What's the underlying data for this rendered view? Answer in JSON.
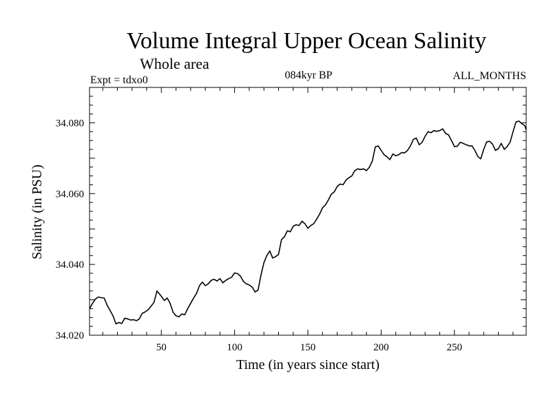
{
  "chart_data": {
    "type": "line",
    "title": "Volume Integral Upper Ocean Salinity",
    "subtitle": "Whole area",
    "header_left": "Expt = tdxo0",
    "header_center": "084kyr BP",
    "header_right": "ALL_MONTHS",
    "xlabel": "Time (in years since start)",
    "ylabel": "Salinity (in PSU)",
    "xlim": [
      1,
      299
    ],
    "ylim": [
      34.02,
      34.09
    ],
    "x_ticks": [
      50,
      100,
      150,
      200,
      250
    ],
    "x_tick_labels": [
      "50",
      "100",
      "150",
      "200",
      "250"
    ],
    "y_ticks": [
      34.02,
      34.04,
      34.06,
      34.08
    ],
    "y_tick_labels": [
      "34.020",
      "34.040",
      "34.060",
      "34.080"
    ],
    "grid": false,
    "colors": {
      "line": "#000000",
      "axes": "#000000",
      "background": "#ffffff"
    },
    "series": [
      {
        "x": [
          1,
          3,
          5,
          7,
          9,
          11,
          13,
          15,
          17,
          19,
          21,
          23,
          25,
          27,
          29,
          31,
          33,
          35,
          37,
          39,
          41,
          43,
          45,
          47,
          48,
          50,
          52,
          54,
          56,
          58,
          60,
          62,
          64,
          66,
          68,
          70,
          72,
          74,
          76,
          78,
          80,
          82,
          84,
          86,
          88,
          90,
          92,
          94,
          96,
          98,
          100,
          102,
          104,
          106,
          108,
          110,
          112,
          114,
          116,
          118,
          120,
          122,
          124,
          126,
          128,
          130,
          132,
          134,
          136,
          138,
          140,
          142,
          144,
          146,
          148,
          150,
          152,
          154,
          156,
          158,
          160,
          162,
          164,
          166,
          168,
          170,
          172,
          174,
          176,
          178,
          180,
          182,
          184,
          186,
          188,
          190,
          192,
          194,
          196,
          198,
          200,
          202,
          204,
          206,
          208,
          210,
          212,
          214,
          216,
          218,
          220,
          222,
          224,
          226,
          228,
          230,
          232,
          234,
          236,
          238,
          240,
          242,
          244,
          246,
          248,
          250,
          252,
          254,
          256,
          258,
          260,
          262,
          264,
          266,
          268,
          270,
          272,
          274,
          276,
          278,
          280,
          282,
          284,
          286,
          288,
          290,
          292,
          294,
          296,
          298,
          299
        ],
        "y": [
          34.0275,
          34.029,
          34.0302,
          34.0308,
          34.0306,
          34.0305,
          34.0285,
          34.027,
          34.0255,
          34.0232,
          34.0236,
          34.0233,
          34.0248,
          34.0246,
          34.0243,
          34.0244,
          34.0241,
          34.0246,
          34.0262,
          34.0266,
          34.0272,
          34.0282,
          34.0293,
          34.0325,
          34.032,
          34.031,
          34.0298,
          34.0305,
          34.029,
          34.0265,
          34.0255,
          34.0252,
          34.026,
          34.0258,
          34.0275,
          34.029,
          34.0305,
          34.0318,
          34.034,
          34.035,
          34.034,
          34.0345,
          34.0355,
          34.0358,
          34.0353,
          34.036,
          34.0348,
          34.0355,
          34.036,
          34.0364,
          34.0376,
          34.0374,
          34.0367,
          34.0352,
          34.0345,
          34.0342,
          34.0336,
          34.0322,
          34.0328,
          34.037,
          34.0405,
          34.0425,
          34.0438,
          34.0418,
          34.0422,
          34.0428,
          34.047,
          34.0478,
          34.0495,
          34.0492,
          34.0508,
          34.0512,
          34.051,
          34.0522,
          34.0515,
          34.0502,
          34.051,
          34.0515,
          34.0528,
          34.0542,
          34.056,
          34.0568,
          34.0582,
          34.0598,
          34.0605,
          34.062,
          34.0627,
          34.0625,
          34.0638,
          34.0645,
          34.065,
          34.0665,
          34.067,
          34.0668,
          34.067,
          34.0665,
          34.0675,
          34.0692,
          34.0732,
          34.0735,
          34.0722,
          34.071,
          34.0704,
          34.0696,
          34.0712,
          34.0707,
          34.071,
          34.0716,
          34.0715,
          34.0722,
          34.0735,
          34.0753,
          34.0757,
          34.0738,
          34.0745,
          34.0762,
          34.0775,
          34.0772,
          34.0778,
          34.0776,
          34.0778,
          34.0783,
          34.077,
          34.0766,
          34.075,
          34.0733,
          34.0734,
          34.0745,
          34.0742,
          34.0738,
          34.0735,
          34.0735,
          34.0722,
          34.0705,
          34.0698,
          34.0725,
          34.0746,
          34.0748,
          34.074,
          34.0722,
          34.0727,
          34.0742,
          34.0725,
          34.0733,
          34.0745,
          34.0775,
          34.0802,
          34.0805,
          34.0798,
          34.0792,
          34.078
        ]
      }
    ]
  }
}
